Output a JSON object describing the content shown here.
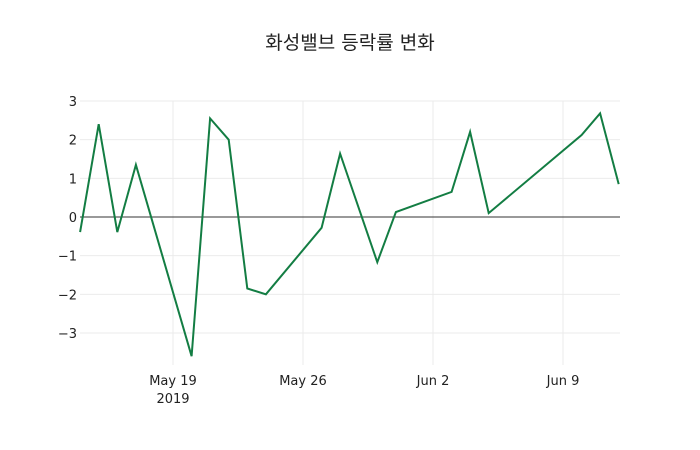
{
  "chart_data": {
    "type": "line",
    "title": "화성밸브 등락률 변화",
    "xlabel": "",
    "ylabel": "",
    "ylim": [
      -3.7,
      3.1
    ],
    "grid": true,
    "legend": null,
    "line_color": "#137d43",
    "x_ticks": [
      {
        "date": "2019-05-19",
        "label": "May 19",
        "sublabel": "2019"
      },
      {
        "date": "2019-05-26",
        "label": "May 26",
        "sublabel": ""
      },
      {
        "date": "2019-06-02",
        "label": "Jun 2",
        "sublabel": ""
      },
      {
        "date": "2019-06-09",
        "label": "Jun 9",
        "sublabel": ""
      }
    ],
    "y_ticks": [
      3,
      2,
      1,
      0,
      -1,
      -2,
      -3
    ],
    "y_tick_labels": [
      "3",
      "2",
      "1",
      "0",
      "−1",
      "−2",
      "−3"
    ],
    "x": [
      "2019-05-14",
      "2019-05-15",
      "2019-05-16",
      "2019-05-17",
      "2019-05-20",
      "2019-05-21",
      "2019-05-22",
      "2019-05-23",
      "2019-05-24",
      "2019-05-27",
      "2019-05-28",
      "2019-05-30",
      "2019-05-31",
      "2019-06-03",
      "2019-06-04",
      "2019-06-05",
      "2019-06-10",
      "2019-06-11",
      "2019-06-12"
    ],
    "values": [
      -0.39,
      2.4,
      -0.39,
      1.35,
      -3.6,
      2.55,
      2.0,
      -1.85,
      -2.0,
      -0.28,
      1.64,
      -1.17,
      0.13,
      0.65,
      2.2,
      0.1,
      2.12,
      2.68,
      0.85
    ]
  }
}
